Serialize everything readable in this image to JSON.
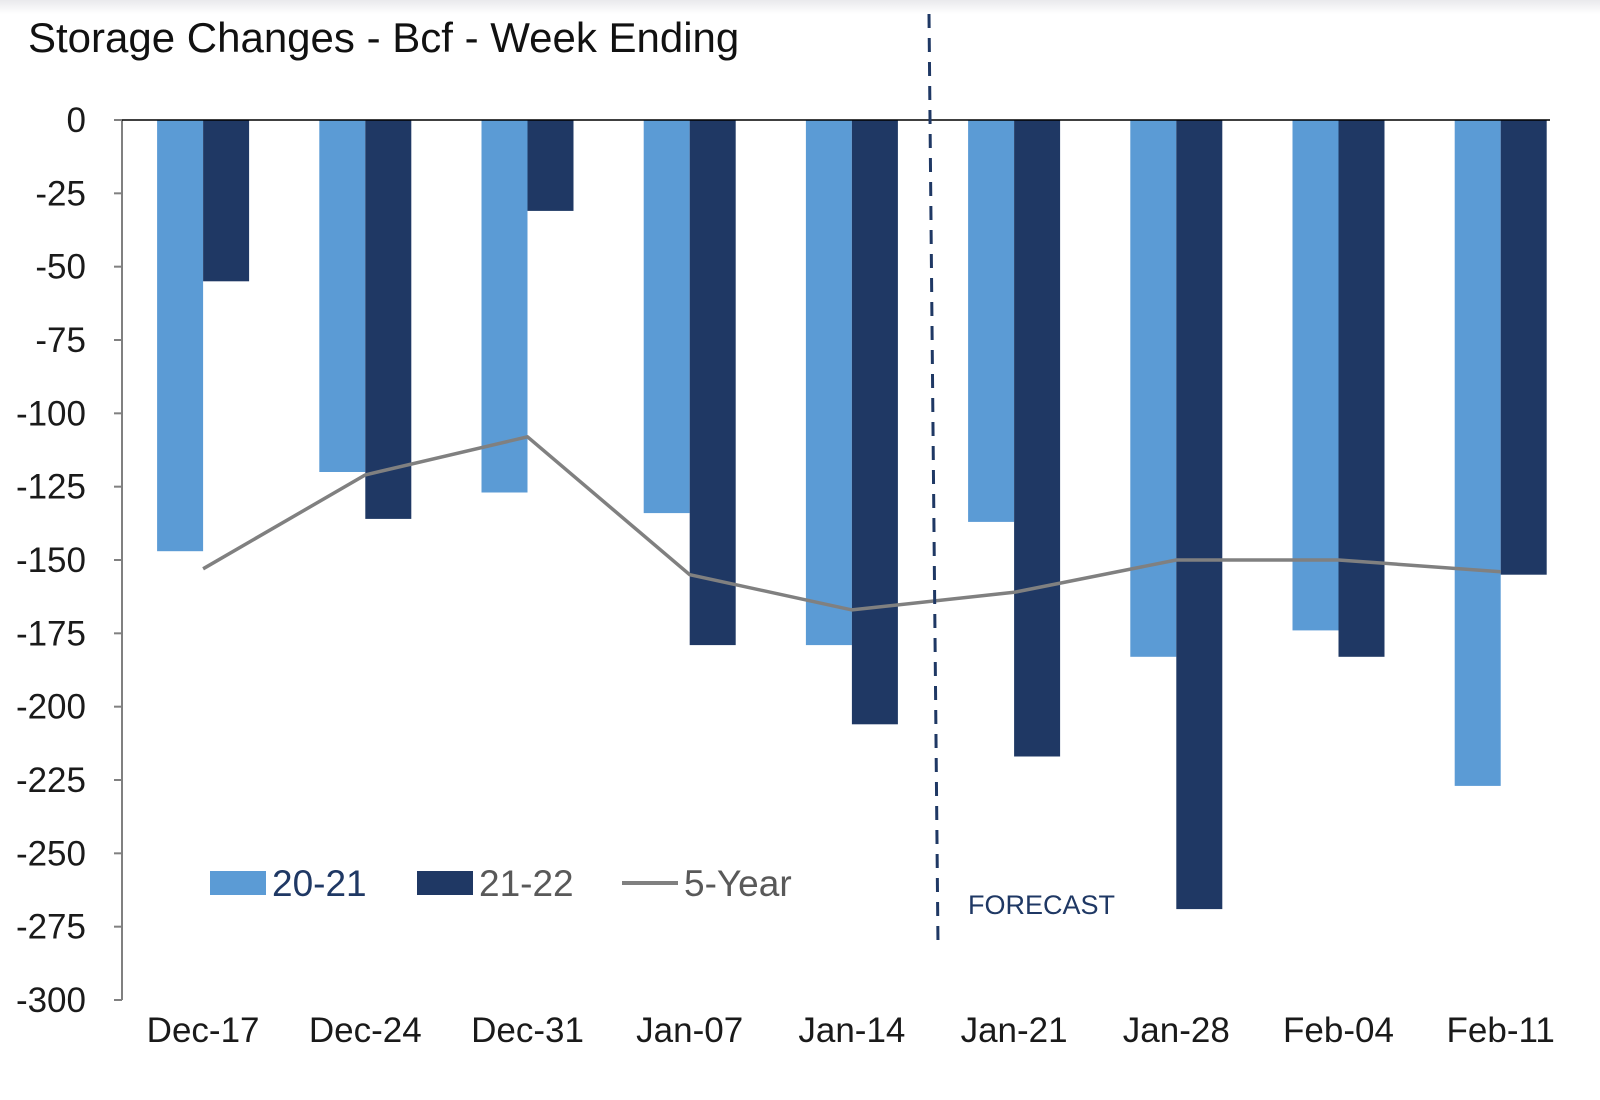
{
  "chart_data": {
    "type": "bar",
    "title": "Storage Changes - Bcf - Week Ending",
    "xlabel": "",
    "ylabel": "",
    "categories": [
      "Dec-17",
      "Dec-24",
      "Dec-31",
      "Jan-07",
      "Jan-14",
      "Jan-21",
      "Jan-28",
      "Feb-04",
      "Feb-11"
    ],
    "series": [
      {
        "name": "20-21",
        "type": "bar",
        "color": "#5b9bd5",
        "values": [
          -147,
          -120,
          -127,
          -134,
          -179,
          -137,
          -183,
          -174,
          -227
        ]
      },
      {
        "name": "21-22",
        "type": "bar",
        "color": "#1f3864",
        "values": [
          -55,
          -136,
          -31,
          -179,
          -206,
          -217,
          -269,
          -183,
          -155
        ]
      },
      {
        "name": "5-Year",
        "type": "line",
        "color": "#808080",
        "values": [
          -153,
          -121,
          -108,
          -155,
          -167,
          -161,
          -150,
          -150,
          -154
        ]
      }
    ],
    "ylim": [
      -300,
      0
    ],
    "yticks": [
      0,
      -25,
      -50,
      -75,
      -100,
      -125,
      -150,
      -175,
      -200,
      -225,
      -250,
      -275,
      -300
    ],
    "grid": false,
    "legend_position": "bottom-left",
    "annotations": [
      {
        "text": "FORECAST",
        "between_categories": [
          "Jan-14",
          "Jan-21"
        ],
        "style": "dashed-vertical-line",
        "color": "#1f3864"
      }
    ]
  }
}
